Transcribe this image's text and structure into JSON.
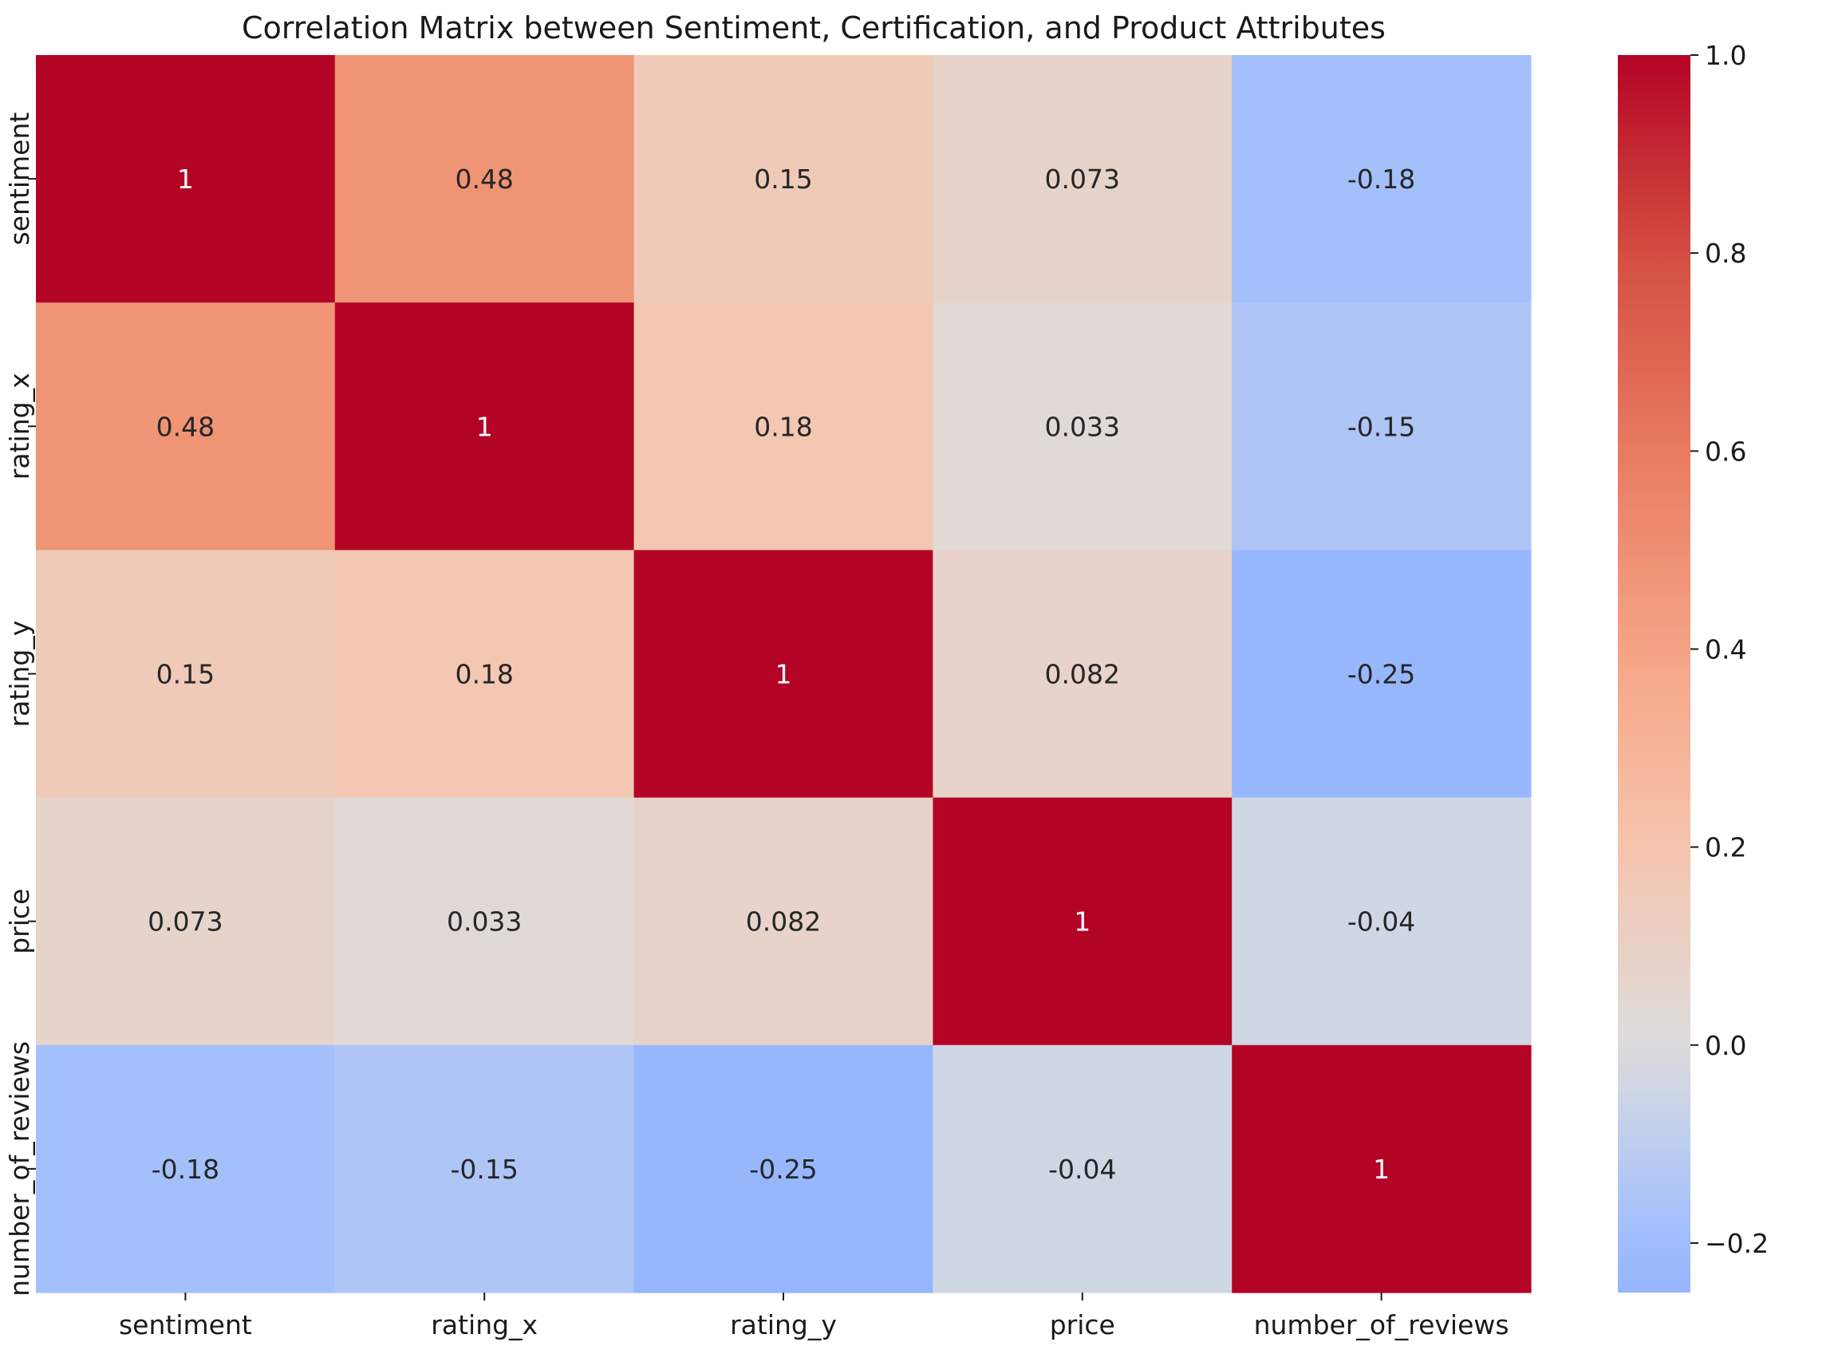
{
  "chart_data": {
    "type": "heatmap",
    "title": "Correlation Matrix between Sentiment, Certification, and Product Attributes",
    "xlabel": "",
    "ylabel": "",
    "rows": [
      "sentiment",
      "rating_x",
      "rating_y",
      "price",
      "number_of_reviews"
    ],
    "columns": [
      "sentiment",
      "rating_x",
      "rating_y",
      "price",
      "number_of_reviews"
    ],
    "values": [
      [
        1,
        0.48,
        0.15,
        0.073,
        -0.18
      ],
      [
        0.48,
        1,
        0.18,
        0.033,
        -0.15
      ],
      [
        0.15,
        0.18,
        1,
        0.082,
        -0.25
      ],
      [
        0.073,
        0.033,
        0.082,
        1,
        -0.04
      ],
      [
        -0.18,
        -0.15,
        -0.25,
        -0.04,
        1
      ]
    ],
    "cell_labels": [
      [
        "1",
        "0.48",
        "0.15",
        "0.073",
        "-0.18"
      ],
      [
        "0.48",
        "1",
        "0.18",
        "0.033",
        "-0.15"
      ],
      [
        "0.15",
        "0.18",
        "1",
        "0.082",
        "-0.25"
      ],
      [
        "0.073",
        "0.033",
        "0.082",
        "1",
        "-0.04"
      ],
      [
        "-0.18",
        "-0.15",
        "-0.25",
        "-0.04",
        "1"
      ]
    ],
    "colormap": "coolwarm",
    "color_center": 0,
    "color_range": [
      -0.25,
      1.0
    ],
    "colorbar": {
      "ticks": [
        1.0,
        0.8,
        0.6,
        0.4,
        0.2,
        0.0,
        -0.2
      ],
      "tick_labels": [
        "1.0",
        "0.8",
        "0.6",
        "0.4",
        "0.2",
        "0.0",
        "−0.2"
      ]
    },
    "grid": false,
    "legend": "right"
  }
}
